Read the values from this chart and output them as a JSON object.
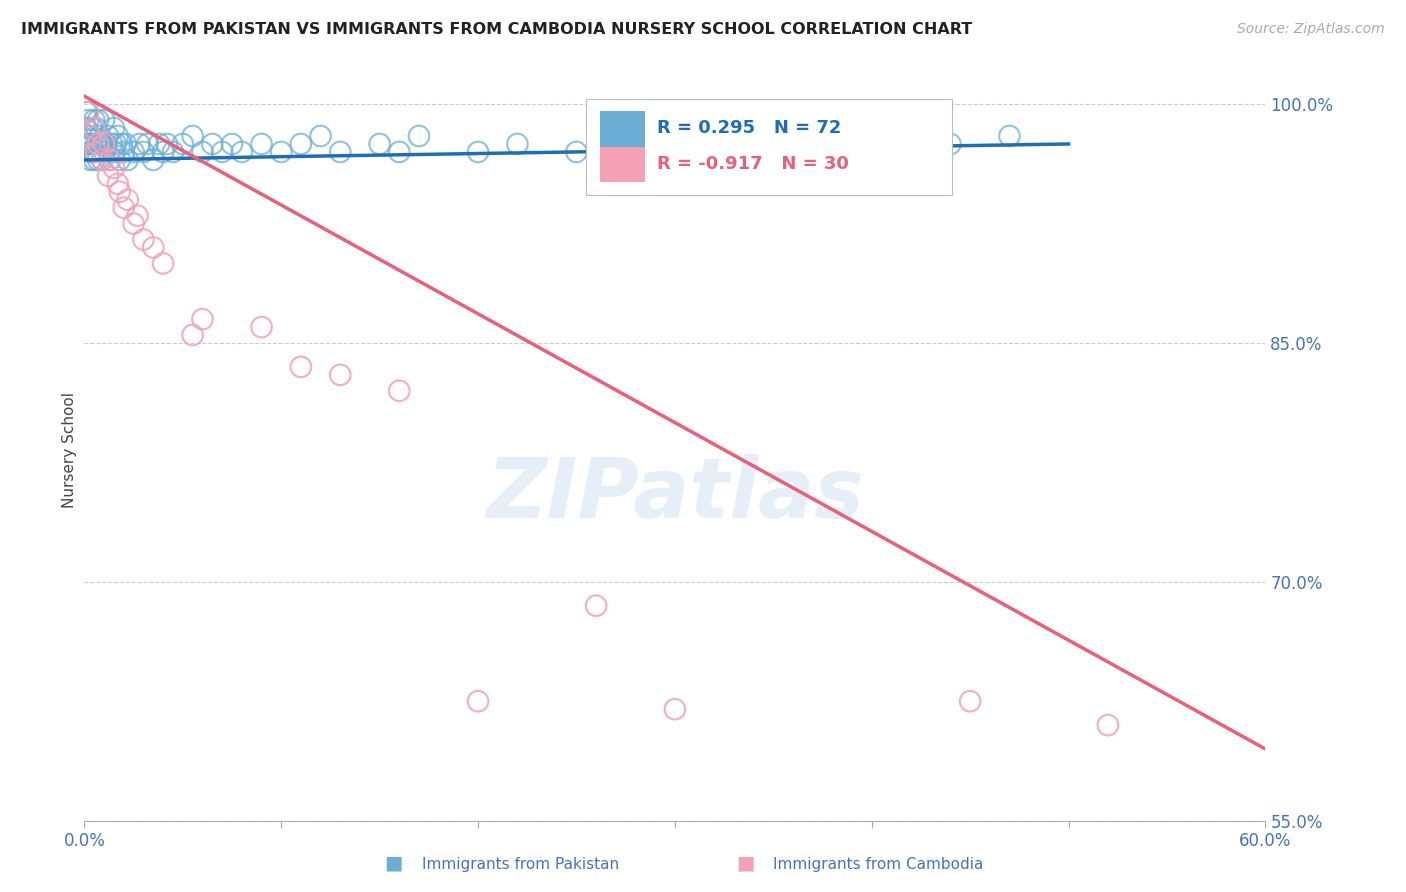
{
  "title": "IMMIGRANTS FROM PAKISTAN VS IMMIGRANTS FROM CAMBODIA NURSERY SCHOOL CORRELATION CHART",
  "source": "Source: ZipAtlas.com",
  "ylabel": "Nursery School",
  "xlim": [
    0.0,
    0.6
  ],
  "ylim": [
    0.565,
    1.015
  ],
  "yticks": [
    0.6,
    0.7,
    0.8,
    0.85,
    0.9,
    1.0
  ],
  "ytick_labels_right": [
    "",
    "",
    "",
    "85.0%",
    "",
    "100.0%"
  ],
  "ytick_right_vals": [
    0.85,
    1.0
  ],
  "ytick_right_labels": [
    "85.0%",
    "100.0%"
  ],
  "ytick_55_val": 0.617,
  "ytick_70_val": 0.747,
  "ytick_55_label": "55.0%",
  "ytick_70_label": "70.0%",
  "xticks": [
    0.0,
    0.1,
    0.2,
    0.3,
    0.4,
    0.5,
    0.6
  ],
  "xtick_labels": [
    "0.0%",
    "",
    "",
    "",
    "",
    "",
    "60.0%"
  ],
  "pakistan_color": "#6aaed6",
  "cambodia_color": "#f4a0b5",
  "pakistan_line_color": "#1f6eb5",
  "cambodia_line_color": "#e8607a",
  "pakistan_R": 0.295,
  "pakistan_N": 72,
  "cambodia_R": -0.917,
  "cambodia_N": 30,
  "watermark": "ZIPatlas",
  "background_color": "#ffffff",
  "grid_color": "#cccccc",
  "tick_color": "#4472c4",
  "pakistan_scatter_x": [
    0.001,
    0.001,
    0.002,
    0.002,
    0.003,
    0.003,
    0.003,
    0.004,
    0.004,
    0.005,
    0.005,
    0.005,
    0.006,
    0.006,
    0.007,
    0.007,
    0.008,
    0.008,
    0.009,
    0.009,
    0.01,
    0.01,
    0.011,
    0.012,
    0.013,
    0.014,
    0.015,
    0.015,
    0.016,
    0.017,
    0.018,
    0.019,
    0.02,
    0.021,
    0.022,
    0.025,
    0.028,
    0.03,
    0.032,
    0.035,
    0.038,
    0.04,
    0.042,
    0.045,
    0.05,
    0.055,
    0.06,
    0.065,
    0.07,
    0.075,
    0.08,
    0.09,
    0.1,
    0.11,
    0.12,
    0.13,
    0.15,
    0.16,
    0.17,
    0.2,
    0.22,
    0.25,
    0.27,
    0.28,
    0.3,
    0.32,
    0.33,
    0.35,
    0.38,
    0.4,
    0.44,
    0.47
  ],
  "pakistan_scatter_y": [
    0.995,
    0.985,
    0.99,
    0.975,
    0.98,
    0.97,
    0.965,
    0.975,
    0.985,
    0.99,
    0.97,
    0.965,
    0.975,
    0.985,
    0.99,
    0.965,
    0.975,
    0.98,
    0.965,
    0.975,
    0.99,
    0.97,
    0.975,
    0.98,
    0.965,
    0.975,
    0.985,
    0.97,
    0.975,
    0.98,
    0.965,
    0.975,
    0.97,
    0.975,
    0.965,
    0.97,
    0.975,
    0.97,
    0.975,
    0.965,
    0.975,
    0.97,
    0.975,
    0.97,
    0.975,
    0.98,
    0.97,
    0.975,
    0.97,
    0.975,
    0.97,
    0.975,
    0.97,
    0.975,
    0.98,
    0.97,
    0.975,
    0.97,
    0.98,
    0.97,
    0.975,
    0.97,
    0.98,
    0.975,
    0.97,
    0.975,
    0.98,
    0.97,
    0.975,
    0.97,
    0.975,
    0.98
  ],
  "cambodia_scatter_x": [
    0.002,
    0.003,
    0.005,
    0.006,
    0.007,
    0.009,
    0.01,
    0.012,
    0.013,
    0.015,
    0.017,
    0.018,
    0.02,
    0.022,
    0.025,
    0.027,
    0.03,
    0.035,
    0.04,
    0.055,
    0.06,
    0.09,
    0.11,
    0.13,
    0.16,
    0.2,
    0.26,
    0.3,
    0.45,
    0.52
  ],
  "cambodia_scatter_y": [
    0.995,
    0.98,
    0.985,
    0.97,
    0.975,
    0.965,
    0.975,
    0.955,
    0.965,
    0.96,
    0.95,
    0.945,
    0.935,
    0.94,
    0.925,
    0.93,
    0.915,
    0.91,
    0.9,
    0.855,
    0.865,
    0.86,
    0.835,
    0.83,
    0.82,
    0.625,
    0.685,
    0.62,
    0.625,
    0.61
  ],
  "pak_trend_x": [
    0.0,
    0.5
  ],
  "pak_trend_y": [
    0.965,
    0.975
  ],
  "cam_trend_x": [
    0.0,
    0.6
  ],
  "cam_trend_y": [
    1.005,
    0.595
  ]
}
